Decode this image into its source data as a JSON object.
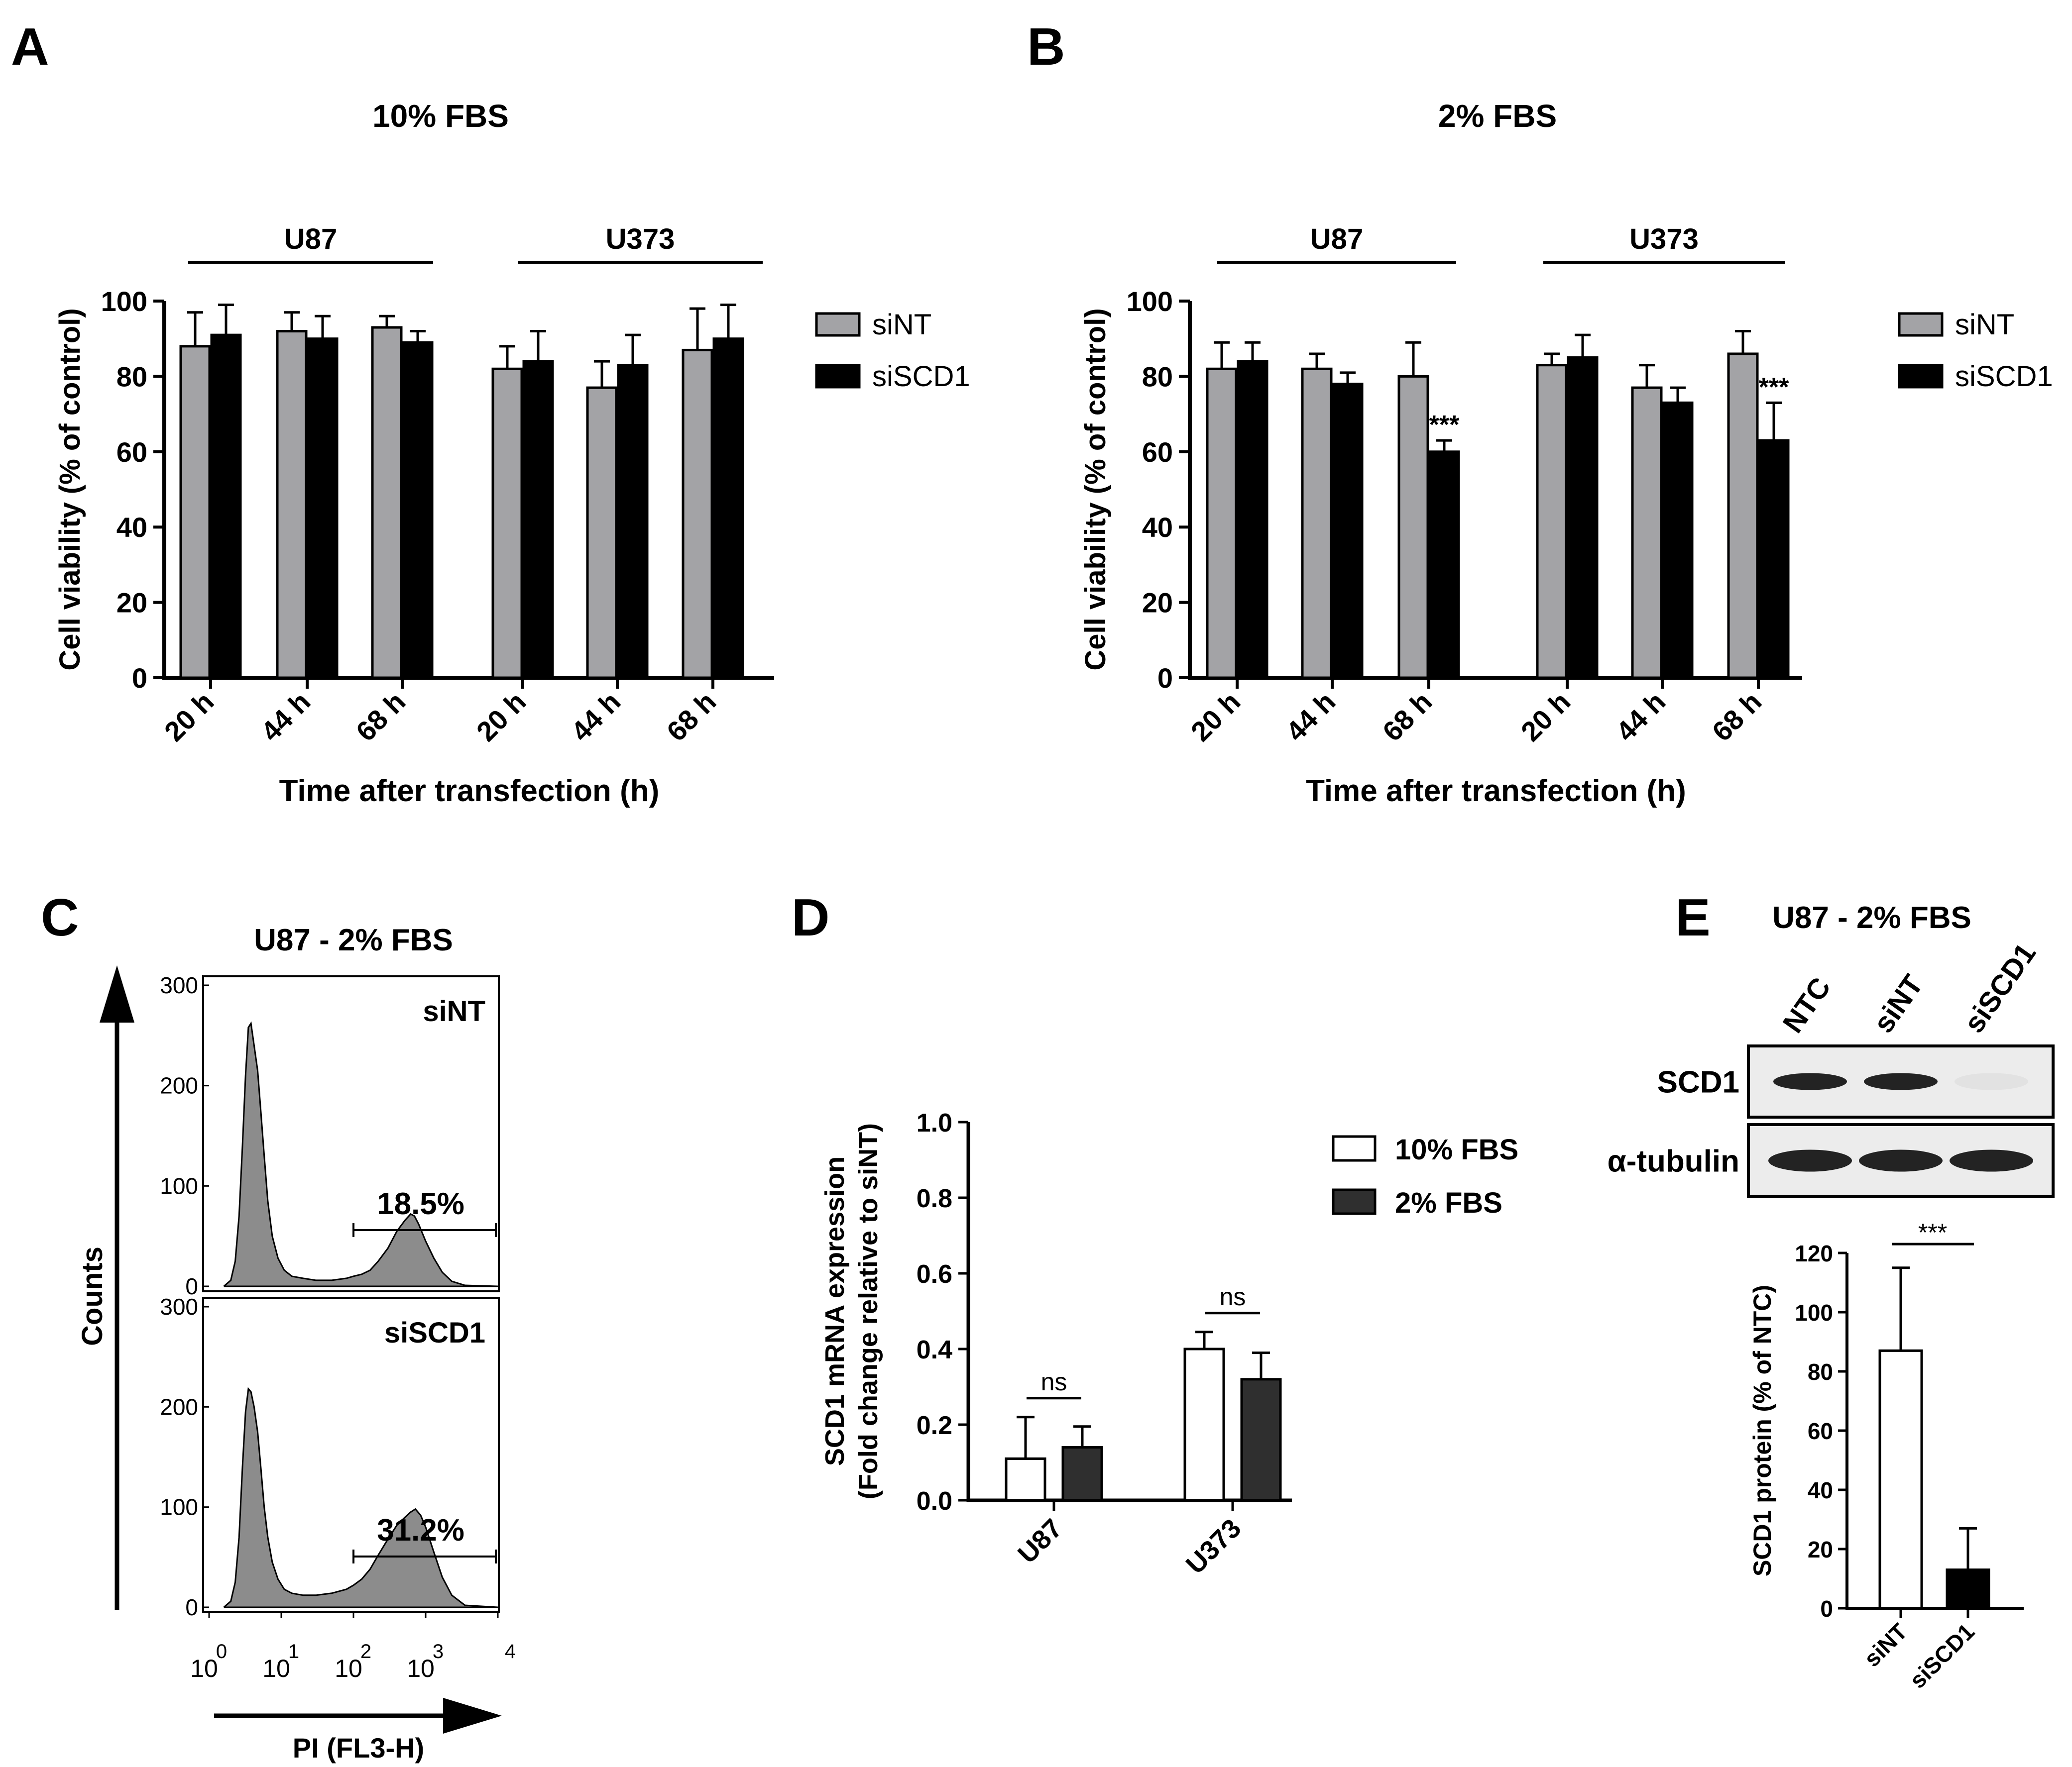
{
  "panel_labels": [
    "A",
    "B",
    "C",
    "D",
    "E"
  ],
  "colors": {
    "siNT": "#a3a3a6",
    "siSCD1": "#000000",
    "fbs10": "#ffffff",
    "fbs2": "#2f2f2f",
    "histogram_fill": "#8c8c8c"
  },
  "chart_data": [
    {
      "panel": "A",
      "type": "bar",
      "title": "10% FBS",
      "xlabel": "Time after transfection (h)",
      "ylabel": "Cell viability (% of control)",
      "ylim": [
        0,
        100
      ],
      "yticks": [
        "0",
        "20",
        "40",
        "60",
        "80",
        "100"
      ],
      "groups": [
        {
          "label": "U87",
          "categories": [
            "20 h",
            "44 h",
            "68 h"
          ]
        },
        {
          "label": "U373",
          "categories": [
            "20 h",
            "44 h",
            "68 h"
          ]
        }
      ],
      "legend": "right",
      "series": [
        {
          "name": "siNT",
          "values": [
            88,
            92,
            93,
            82,
            77,
            87
          ],
          "errors": [
            9,
            5,
            3,
            6,
            7,
            11
          ]
        },
        {
          "name": "siSCD1",
          "values": [
            91,
            90,
            89,
            84,
            83,
            90
          ],
          "errors": [
            8,
            6,
            3,
            8,
            8,
            9
          ]
        }
      ],
      "annotations": []
    },
    {
      "panel": "B",
      "type": "bar",
      "title": "2% FBS",
      "xlabel": "Time after transfection (h)",
      "ylabel": "Cell viability (% of control)",
      "ylim": [
        0,
        100
      ],
      "yticks": [
        "0",
        "20",
        "40",
        "60",
        "80",
        "100"
      ],
      "groups": [
        {
          "label": "U87",
          "categories": [
            "20 h",
            "44 h",
            "68 h"
          ]
        },
        {
          "label": "U373",
          "categories": [
            "20 h",
            "44 h",
            "68 h"
          ]
        }
      ],
      "legend": "right",
      "series": [
        {
          "name": "siNT",
          "values": [
            82,
            82,
            80,
            83,
            77,
            86
          ],
          "errors": [
            7,
            4,
            9,
            3,
            6,
            6
          ]
        },
        {
          "name": "siSCD1",
          "values": [
            84,
            78,
            60,
            85,
            73,
            63
          ],
          "errors": [
            5,
            3,
            3,
            6,
            4,
            10
          ]
        }
      ],
      "annotations": [
        {
          "series": "siSCD1",
          "index": 2,
          "text": "***"
        },
        {
          "series": "siSCD1",
          "index": 5,
          "text": "***"
        }
      ]
    },
    {
      "panel": "C",
      "type": "area",
      "title": "U87 - 2% FBS",
      "xlabel": "PI (FL3-H)",
      "ylabel": "Counts",
      "x_scale": "log",
      "xlim": [
        1,
        10000
      ],
      "ylim": [
        0,
        300
      ],
      "yticks": [
        "0",
        "100",
        "200",
        "300"
      ],
      "xticks": [
        {
          "base": "10",
          "exp": "0"
        },
        {
          "base": "10",
          "exp": "1"
        },
        {
          "base": "10",
          "exp": "2"
        },
        {
          "base": "10",
          "exp": "3"
        },
        {
          "base": "",
          "exp": "4"
        }
      ],
      "series": [
        {
          "name": "siNT",
          "gate_percent": "18.5%",
          "gate_range": [
            100,
            10000
          ],
          "x": [
            1.6,
            2.0,
            2.3,
            2.6,
            2.9,
            3.2,
            3.5,
            3.8,
            4.2,
            4.7,
            5.2,
            5.8,
            6.5,
            7.5,
            9,
            11,
            14,
            20,
            30,
            50,
            80,
            100,
            130,
            170,
            220,
            300,
            400,
            520,
            620,
            700,
            800,
            1000,
            1300,
            1700,
            2300,
            3500,
            10000
          ],
          "y": [
            0,
            6,
            25,
            70,
            140,
            210,
            258,
            262,
            240,
            215,
            175,
            130,
            85,
            50,
            28,
            16,
            10,
            8,
            6,
            6,
            8,
            10,
            12,
            16,
            25,
            38,
            55,
            66,
            72,
            70,
            62,
            45,
            28,
            14,
            5,
            1,
            0
          ]
        },
        {
          "name": "siSCD1",
          "gate_percent": "31.2%",
          "gate_range": [
            100,
            10000
          ],
          "x": [
            1.6,
            2.0,
            2.3,
            2.6,
            2.9,
            3.2,
            3.5,
            3.8,
            4.2,
            4.7,
            5.2,
            5.8,
            6.5,
            7.5,
            9,
            11,
            14,
            20,
            30,
            50,
            80,
            100,
            130,
            170,
            220,
            300,
            400,
            520,
            620,
            720,
            850,
            1000,
            1300,
            1700,
            2300,
            3500,
            10000
          ],
          "y": [
            0,
            6,
            25,
            70,
            140,
            195,
            218,
            215,
            200,
            175,
            140,
            100,
            70,
            45,
            28,
            18,
            14,
            12,
            12,
            14,
            18,
            22,
            28,
            38,
            52,
            68,
            82,
            90,
            95,
            98,
            92,
            80,
            55,
            30,
            12,
            2,
            0
          ]
        }
      ]
    },
    {
      "panel": "D",
      "type": "bar",
      "xlabel": "",
      "ylabel": "SCD1 mRNA expression (Fold change relative to siNT)",
      "ylabel_lines": [
        "SCD1 mRNA expression",
        "(Fold change relative to siNT)"
      ],
      "ylim": [
        0,
        1.0
      ],
      "yticks": [
        "0.0",
        "0.2",
        "0.4",
        "0.6",
        "0.8",
        "1.0"
      ],
      "categories": [
        "U87",
        "U373"
      ],
      "legend": "top-right",
      "series": [
        {
          "name": "10% FBS",
          "values": [
            0.11,
            0.4
          ],
          "errors": [
            0.11,
            0.045
          ]
        },
        {
          "name": "2% FBS",
          "values": [
            0.14,
            0.32
          ],
          "errors": [
            0.055,
            0.07
          ]
        }
      ],
      "annotations": [
        {
          "category": "U87",
          "text": "ns"
        },
        {
          "category": "U373",
          "text": "ns"
        }
      ]
    },
    {
      "panel": "E",
      "type": "bar",
      "title": "U87 - 2% FBS",
      "blot": {
        "lanes": [
          "NTC",
          "siNT",
          "siSCD1"
        ],
        "rows": [
          {
            "label": "SCD1",
            "band_intensity": [
              1.0,
              1.0,
              0.0
            ]
          },
          {
            "label": "α-tubulin",
            "band_intensity": [
              1.0,
              1.0,
              1.0
            ]
          }
        ]
      },
      "ylabel": "SCD1 protein (% of NTC)",
      "ylim": [
        0,
        120
      ],
      "yticks": [
        "0",
        "20",
        "40",
        "60",
        "80",
        "100",
        "120"
      ],
      "categories": [
        "siNT",
        "siSCD1"
      ],
      "values": [
        87,
        13
      ],
      "errors": [
        28,
        14
      ],
      "annotations": [
        {
          "text": "***"
        }
      ]
    }
  ]
}
